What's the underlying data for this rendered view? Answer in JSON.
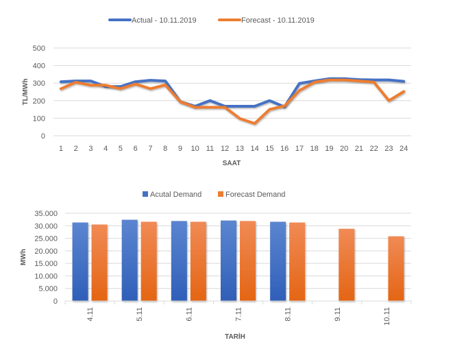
{
  "chart_data": [
    {
      "type": "line",
      "title": "",
      "xlabel": "SAAT",
      "ylabel": "TL/MWh",
      "ylim": [
        0,
        500
      ],
      "yticks": [
        "0",
        "100",
        "200",
        "300",
        "400",
        "500"
      ],
      "grid": true,
      "legend_position": "top",
      "x": [
        "1",
        "2",
        "3",
        "4",
        "5",
        "6",
        "7",
        "8",
        "9",
        "10",
        "11",
        "12",
        "13",
        "14",
        "15",
        "16",
        "17",
        "18",
        "19",
        "20",
        "21",
        "22",
        "23",
        "24"
      ],
      "series": [
        {
          "name": "Actual - 10.11.2019",
          "color": "#4472c4",
          "values": [
            308,
            312,
            312,
            280,
            280,
            308,
            316,
            312,
            195,
            168,
            200,
            168,
            168,
            168,
            200,
            165,
            298,
            312,
            325,
            325,
            320,
            318,
            318,
            310
          ]
        },
        {
          "name": "Forecast - 10.11.2019",
          "color": "#ed7d31",
          "values": [
            268,
            305,
            288,
            288,
            268,
            295,
            268,
            290,
            195,
            162,
            162,
            162,
            98,
            70,
            150,
            170,
            258,
            305,
            318,
            318,
            312,
            305,
            200,
            252
          ]
        }
      ]
    },
    {
      "type": "bar",
      "title": "",
      "xlabel": "TARİH",
      "ylabel": "MWh",
      "ylim": [
        0,
        35000
      ],
      "yticks": [
        "0",
        "5.000",
        "10.000",
        "15.000",
        "20.000",
        "25.000",
        "30.000",
        "35.000"
      ],
      "grid": true,
      "legend_position": "top",
      "categories": [
        "4.11",
        "5.11",
        "6.11",
        "7.11",
        "8.11",
        "9.11",
        "10.11"
      ],
      "series": [
        {
          "name": "Acutal Demand",
          "color": "#4472c4",
          "values": [
            31300,
            32400,
            31900,
            32100,
            31600,
            null,
            null
          ]
        },
        {
          "name": "Forecast Demand",
          "color": "#ed7d31",
          "values": [
            30500,
            31600,
            31600,
            31900,
            31300,
            28800,
            25800
          ]
        }
      ]
    }
  ]
}
